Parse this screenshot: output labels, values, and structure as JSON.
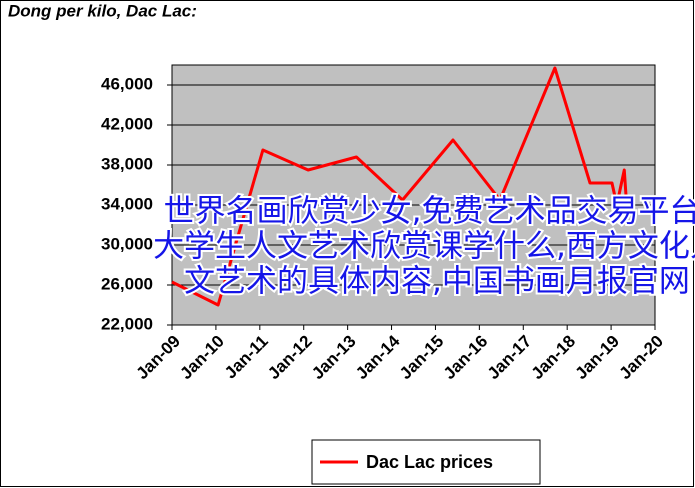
{
  "chart_data": {
    "type": "line",
    "title": "Dong per kilo, Dac Lac:",
    "x": [
      2009.0,
      2010.05,
      2011.07,
      2012.1,
      2013.2,
      2014.25,
      2015.4,
      2016.47,
      2017.72,
      2018.52,
      2019.02,
      2019.13,
      2019.3,
      2019.37,
      2019.45
    ],
    "series": [
      {
        "name": "Dac Lac prices",
        "color": "#ff0000",
        "values": [
          26300,
          24000,
          39500,
          37500,
          38800,
          34500,
          40500,
          34500,
          47700,
          36200,
          36200,
          34000,
          37500,
          33000,
          34000
        ]
      }
    ],
    "xlim": [
      2009,
      2020
    ],
    "xticks": [
      {
        "value": 2009,
        "label": "Jan-09"
      },
      {
        "value": 2010,
        "label": "Jan-10"
      },
      {
        "value": 2011,
        "label": "Jan-11"
      },
      {
        "value": 2012,
        "label": "Jan-12"
      },
      {
        "value": 2013,
        "label": "Jan-13"
      },
      {
        "value": 2014,
        "label": "Jan-14"
      },
      {
        "value": 2015,
        "label": "Jan-15"
      },
      {
        "value": 2016,
        "label": "Jan-16"
      },
      {
        "value": 2017,
        "label": "Jan-17"
      },
      {
        "value": 2018,
        "label": "Jan-18"
      },
      {
        "value": 2019,
        "label": "Jan-19"
      },
      {
        "value": 2020,
        "label": "Jan-20"
      }
    ],
    "ylim": [
      22000,
      48000
    ],
    "yticks": [
      {
        "value": 22000,
        "label": "22,000"
      },
      {
        "value": 26000,
        "label": "26,000"
      },
      {
        "value": 30000,
        "label": "30,000"
      },
      {
        "value": 34000,
        "label": "34,000"
      },
      {
        "value": 38000,
        "label": "38,000"
      },
      {
        "value": 42000,
        "label": "42,000"
      },
      {
        "value": 46000,
        "label": "46,000"
      }
    ],
    "grid": true,
    "background": "#c0c0c0",
    "watermark": [
      "世界名画欣赏少女,免费艺术品交易平台,",
      "大学生人文艺术欣赏课学什么,西方文化人",
      "文艺术的具体内容,中国书画月报官网"
    ]
  }
}
